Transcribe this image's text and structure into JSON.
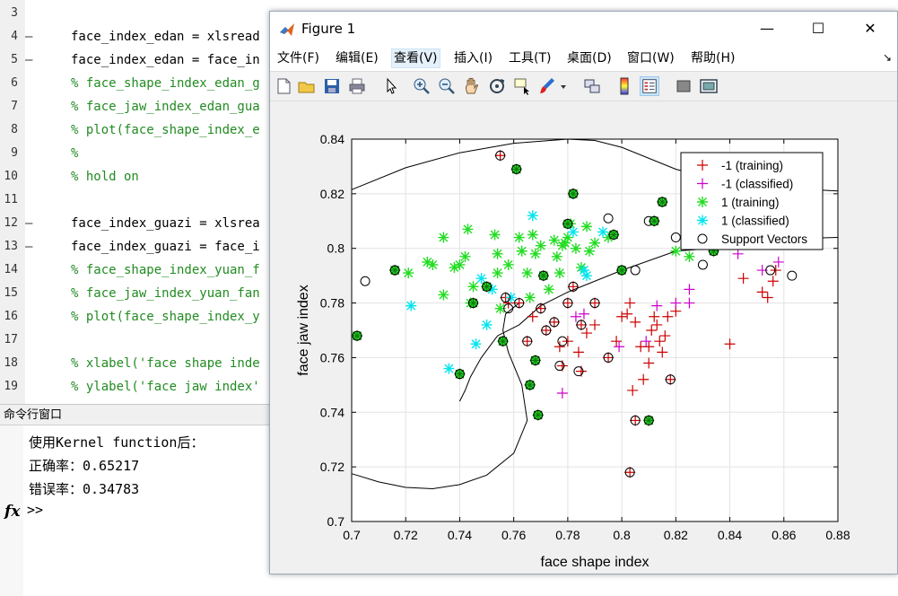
{
  "editor": {
    "lines": [
      {
        "num": "3",
        "dash": "",
        "code": "",
        "type": "k"
      },
      {
        "num": "4",
        "dash": "—",
        "code": "face_index_edan = xlsread",
        "type": "k"
      },
      {
        "num": "5",
        "dash": "—",
        "code": "face_index_edan = face_in",
        "type": "k"
      },
      {
        "num": "6",
        "dash": "",
        "code": "% face_shape_index_edan_g",
        "type": "c"
      },
      {
        "num": "7",
        "dash": "",
        "code": "% face_jaw_index_edan_gua",
        "type": "c"
      },
      {
        "num": "8",
        "dash": "",
        "code": "% plot(face_shape_index_e",
        "type": "c"
      },
      {
        "num": "9",
        "dash": "",
        "code": "%",
        "type": "c"
      },
      {
        "num": "10",
        "dash": "",
        "code": "% hold on",
        "type": "c"
      },
      {
        "num": "11",
        "dash": "",
        "code": "",
        "type": "k"
      },
      {
        "num": "12",
        "dash": "—",
        "code": "face_index_guazi = xlsrea",
        "type": "k"
      },
      {
        "num": "13",
        "dash": "—",
        "code": "face_index_guazi = face_i",
        "type": "k"
      },
      {
        "num": "14",
        "dash": "",
        "code": "% face_shape_index_yuan_f",
        "type": "c"
      },
      {
        "num": "15",
        "dash": "",
        "code": "% face_jaw_index_yuan_fan",
        "type": "c"
      },
      {
        "num": "16",
        "dash": "",
        "code": "% plot(face_shape_index_y",
        "type": "c"
      },
      {
        "num": "17",
        "dash": "",
        "code": "",
        "type": "k"
      },
      {
        "num": "18",
        "dash": "",
        "code": "% xlabel('face shape inde",
        "type": "c"
      },
      {
        "num": "19",
        "dash": "",
        "code": "% ylabel('face jaw index'",
        "type": "c"
      }
    ]
  },
  "command_window": {
    "title": "命令行窗口",
    "lines": [
      "使用Kernel function后：",
      "正确率：0.65217",
      "错误率：0.34783"
    ],
    "fx": "fx",
    "prompt": ">>"
  },
  "figure": {
    "title": "Figure 1",
    "window_buttons": {
      "minimize": "—",
      "maximize": "☐",
      "close": "✕"
    },
    "menus": [
      "文件(F)",
      "编辑(E)",
      "查看(V)",
      "插入(I)",
      "工具(T)",
      "桌面(D)",
      "窗口(W)",
      "帮助(H)"
    ],
    "active_menu": 2,
    "dock_arrow": "↘",
    "toolbar_icons": [
      "new-figure-icon",
      "open-file-icon",
      "save-icon",
      "print-icon",
      "pointer-icon",
      "zoom-in-icon",
      "zoom-out-icon",
      "pan-icon",
      "rotate-icon",
      "data-cursor-icon",
      "brush-icon",
      "brush-dropdown-icon",
      "link-icon",
      "colorbar-icon",
      "legend-icon",
      "hide-plot-tools-icon",
      "show-plot-tools-icon"
    ]
  },
  "colors": {
    "class_neg": "#cc0000",
    "class_neg_classified": "#cc00cc",
    "class_pos": "#22dd22",
    "class_pos_classified": "#00e5ee",
    "support_vector": "#000000",
    "comment": "#228b22"
  },
  "chart_data": {
    "type": "scatter",
    "title": "",
    "xlabel": "face shape index",
    "ylabel": "face jaw index",
    "xlim": [
      0.7,
      0.88
    ],
    "ylim": [
      0.7,
      0.84
    ],
    "xticks": [
      "0.7",
      "0.72",
      "0.74",
      "0.76",
      "0.78",
      "0.8",
      "0.82",
      "0.84",
      "0.86",
      "0.88"
    ],
    "yticks": [
      "0.7",
      "0.72",
      "0.74",
      "0.76",
      "0.78",
      "0.8",
      "0.82",
      "0.84"
    ],
    "grid": true,
    "legend_position": "top-right",
    "series": [
      {
        "name": "-1 (training)",
        "marker": "plus",
        "color": "#cc0000",
        "points": [
          [
            0.755,
            0.834
          ],
          [
            0.757,
            0.782
          ],
          [
            0.758,
            0.78
          ],
          [
            0.762,
            0.78
          ],
          [
            0.765,
            0.766
          ],
          [
            0.767,
            0.775
          ],
          [
            0.77,
            0.778
          ],
          [
            0.772,
            0.77
          ],
          [
            0.775,
            0.773
          ],
          [
            0.777,
            0.764
          ],
          [
            0.778,
            0.757
          ],
          [
            0.78,
            0.766
          ],
          [
            0.78,
            0.78
          ],
          [
            0.782,
            0.786
          ],
          [
            0.784,
            0.762
          ],
          [
            0.785,
            0.755
          ],
          [
            0.785,
            0.772
          ],
          [
            0.787,
            0.769
          ],
          [
            0.79,
            0.772
          ],
          [
            0.79,
            0.78
          ],
          [
            0.795,
            0.76
          ],
          [
            0.798,
            0.766
          ],
          [
            0.8,
            0.775
          ],
          [
            0.802,
            0.776
          ],
          [
            0.803,
            0.718
          ],
          [
            0.803,
            0.78
          ],
          [
            0.804,
            0.748
          ],
          [
            0.805,
            0.737
          ],
          [
            0.805,
            0.773
          ],
          [
            0.807,
            0.764
          ],
          [
            0.808,
            0.752
          ],
          [
            0.81,
            0.758
          ],
          [
            0.81,
            0.764
          ],
          [
            0.811,
            0.77
          ],
          [
            0.812,
            0.775
          ],
          [
            0.813,
            0.772
          ],
          [
            0.814,
            0.766
          ],
          [
            0.815,
            0.762
          ],
          [
            0.816,
            0.768
          ],
          [
            0.817,
            0.775
          ],
          [
            0.818,
            0.752
          ],
          [
            0.82,
            0.777
          ],
          [
            0.84,
            0.765
          ],
          [
            0.845,
            0.789
          ],
          [
            0.852,
            0.784
          ],
          [
            0.854,
            0.782
          ],
          [
            0.856,
            0.788
          ],
          [
            0.857,
            0.792
          ]
        ]
      },
      {
        "name": "-1 (classified)",
        "marker": "plus",
        "color": "#cc00cc",
        "points": [
          [
            0.778,
            0.747
          ],
          [
            0.783,
            0.775
          ],
          [
            0.786,
            0.776
          ],
          [
            0.799,
            0.764
          ],
          [
            0.809,
            0.766
          ],
          [
            0.813,
            0.779
          ],
          [
            0.82,
            0.78
          ],
          [
            0.825,
            0.785
          ],
          [
            0.825,
            0.78
          ],
          [
            0.843,
            0.798
          ],
          [
            0.852,
            0.792
          ],
          [
            0.858,
            0.795
          ]
        ]
      },
      {
        "name": "1 (training)",
        "marker": "star",
        "color": "#22dd22",
        "points": [
          [
            0.702,
            0.768
          ],
          [
            0.716,
            0.792
          ],
          [
            0.721,
            0.791
          ],
          [
            0.728,
            0.795
          ],
          [
            0.73,
            0.794
          ],
          [
            0.734,
            0.804
          ],
          [
            0.734,
            0.783
          ],
          [
            0.738,
            0.793
          ],
          [
            0.74,
            0.794
          ],
          [
            0.742,
            0.797
          ],
          [
            0.743,
            0.807
          ],
          [
            0.744,
            0.78
          ],
          [
            0.745,
            0.786
          ],
          [
            0.75,
            0.786
          ],
          [
            0.753,
            0.805
          ],
          [
            0.754,
            0.798
          ],
          [
            0.754,
            0.791
          ],
          [
            0.755,
            0.778
          ],
          [
            0.756,
            0.766
          ],
          [
            0.758,
            0.794
          ],
          [
            0.761,
            0.829
          ],
          [
            0.762,
            0.804
          ],
          [
            0.763,
            0.799
          ],
          [
            0.765,
            0.791
          ],
          [
            0.766,
            0.782
          ],
          [
            0.767,
            0.805
          ],
          [
            0.768,
            0.798
          ],
          [
            0.77,
            0.801
          ],
          [
            0.771,
            0.79
          ],
          [
            0.773,
            0.785
          ],
          [
            0.775,
            0.803
          ],
          [
            0.776,
            0.797
          ],
          [
            0.777,
            0.791
          ],
          [
            0.778,
            0.801
          ],
          [
            0.779,
            0.802
          ],
          [
            0.78,
            0.804
          ],
          [
            0.781,
            0.809
          ],
          [
            0.782,
            0.82
          ],
          [
            0.783,
            0.8
          ],
          [
            0.785,
            0.793
          ],
          [
            0.787,
            0.808
          ],
          [
            0.788,
            0.799
          ],
          [
            0.79,
            0.802
          ],
          [
            0.795,
            0.804
          ],
          [
            0.797,
            0.805
          ],
          [
            0.8,
            0.792
          ],
          [
            0.812,
            0.81
          ],
          [
            0.815,
            0.817
          ],
          [
            0.82,
            0.799
          ],
          [
            0.825,
            0.797
          ],
          [
            0.834,
            0.799
          ],
          [
            0.74,
            0.754
          ],
          [
            0.769,
            0.739
          ],
          [
            0.81,
            0.737
          ],
          [
            0.768,
            0.759
          ],
          [
            0.766,
            0.75
          ]
        ]
      },
      {
        "name": "1 (classified)",
        "marker": "star",
        "color": "#00e5ee",
        "points": [
          [
            0.722,
            0.779
          ],
          [
            0.736,
            0.756
          ],
          [
            0.746,
            0.765
          ],
          [
            0.748,
            0.789
          ],
          [
            0.75,
            0.772
          ],
          [
            0.752,
            0.785
          ],
          [
            0.759,
            0.782
          ],
          [
            0.767,
            0.812
          ],
          [
            0.782,
            0.806
          ],
          [
            0.786,
            0.792
          ],
          [
            0.787,
            0.79
          ],
          [
            0.793,
            0.806
          ]
        ]
      },
      {
        "name": "Support Vectors",
        "marker": "circle",
        "color": "#000000",
        "points": [
          [
            0.705,
            0.788
          ],
          [
            0.702,
            0.768
          ],
          [
            0.716,
            0.792
          ],
          [
            0.74,
            0.754
          ],
          [
            0.745,
            0.78
          ],
          [
            0.75,
            0.786
          ],
          [
            0.755,
            0.834
          ],
          [
            0.756,
            0.766
          ],
          [
            0.757,
            0.782
          ],
          [
            0.758,
            0.778
          ],
          [
            0.761,
            0.829
          ],
          [
            0.762,
            0.78
          ],
          [
            0.765,
            0.766
          ],
          [
            0.766,
            0.75
          ],
          [
            0.768,
            0.759
          ],
          [
            0.769,
            0.739
          ],
          [
            0.77,
            0.778
          ],
          [
            0.771,
            0.79
          ],
          [
            0.772,
            0.77
          ],
          [
            0.775,
            0.773
          ],
          [
            0.777,
            0.757
          ],
          [
            0.778,
            0.766
          ],
          [
            0.78,
            0.78
          ],
          [
            0.78,
            0.809
          ],
          [
            0.782,
            0.786
          ],
          [
            0.782,
            0.82
          ],
          [
            0.784,
            0.755
          ],
          [
            0.785,
            0.772
          ],
          [
            0.79,
            0.78
          ],
          [
            0.795,
            0.811
          ],
          [
            0.795,
            0.76
          ],
          [
            0.797,
            0.805
          ],
          [
            0.8,
            0.792
          ],
          [
            0.803,
            0.718
          ],
          [
            0.805,
            0.737
          ],
          [
            0.805,
            0.792
          ],
          [
            0.81,
            0.737
          ],
          [
            0.81,
            0.81
          ],
          [
            0.812,
            0.81
          ],
          [
            0.815,
            0.817
          ],
          [
            0.818,
            0.752
          ],
          [
            0.82,
            0.804
          ],
          [
            0.83,
            0.794
          ],
          [
            0.834,
            0.799
          ],
          [
            0.845,
            0.803
          ],
          [
            0.855,
            0.792
          ],
          [
            0.863,
            0.79
          ]
        ]
      }
    ],
    "decision_boundary": [
      [
        0.7,
        0.8215
      ],
      [
        0.72,
        0.8295
      ],
      [
        0.74,
        0.835
      ],
      [
        0.76,
        0.8385
      ],
      [
        0.78,
        0.84
      ],
      [
        0.79,
        0.8395
      ],
      [
        0.8,
        0.837
      ],
      [
        0.82,
        0.829
      ],
      [
        0.84,
        0.8235
      ],
      [
        0.86,
        0.822
      ],
      [
        0.88,
        0.821
      ]
    ],
    "inner_boundary": [
      [
        0.88,
        0.804
      ],
      [
        0.86,
        0.8035
      ],
      [
        0.84,
        0.8005
      ],
      [
        0.82,
        0.799
      ],
      [
        0.8,
        0.792
      ],
      [
        0.78,
        0.784
      ],
      [
        0.77,
        0.779
      ],
      [
        0.762,
        0.772
      ],
      [
        0.754,
        0.768
      ],
      [
        0.748,
        0.76
      ],
      [
        0.744,
        0.753
      ],
      [
        0.742,
        0.748
      ],
      [
        0.74,
        0.744
      ]
    ],
    "lower_boundary": [
      [
        0.7,
        0.7175
      ],
      [
        0.71,
        0.7145
      ],
      [
        0.72,
        0.7125
      ],
      [
        0.73,
        0.712
      ],
      [
        0.74,
        0.7135
      ],
      [
        0.75,
        0.717
      ],
      [
        0.76,
        0.725
      ],
      [
        0.765,
        0.737
      ],
      [
        0.763,
        0.75
      ],
      [
        0.758,
        0.762
      ],
      [
        0.756,
        0.77
      ],
      [
        0.757,
        0.776
      ],
      [
        0.762,
        0.78
      ]
    ]
  }
}
